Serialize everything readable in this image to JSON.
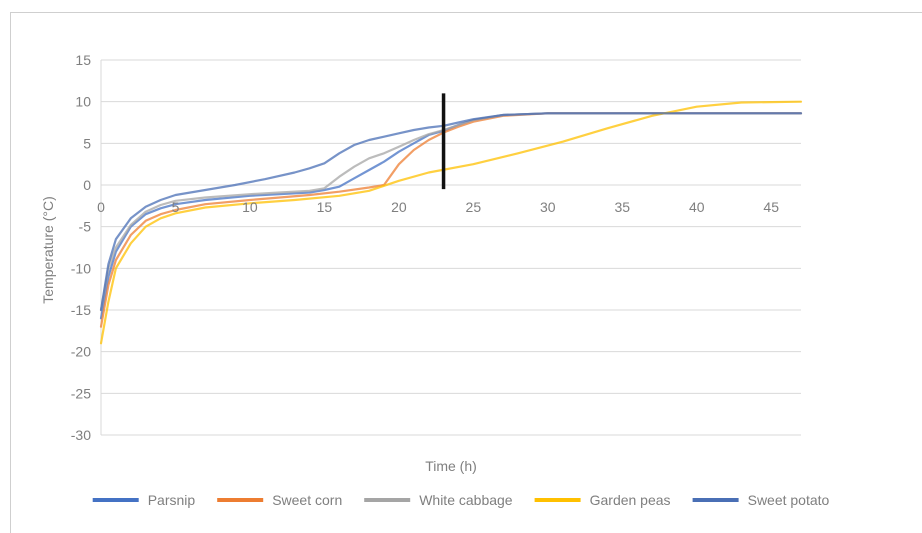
{
  "chart_data": {
    "type": "line",
    "title": "",
    "xlabel": "Time (h)",
    "ylabel": "Temperature (°C)",
    "xlim": [
      0,
      47
    ],
    "ylim": [
      -30,
      15
    ],
    "x_ticks": [
      0,
      5,
      10,
      15,
      20,
      25,
      30,
      35,
      40,
      45
    ],
    "y_ticks": [
      15,
      10,
      5,
      0,
      -5,
      -10,
      -15,
      -20,
      -25,
      -30
    ],
    "grid": "horizontal",
    "legend_position": "bottom",
    "marker_x": 23,
    "marker_y_range": [
      -0.5,
      11
    ],
    "series": [
      {
        "name": "Parsnip",
        "color": "#4472c4",
        "points": [
          [
            0,
            -16
          ],
          [
            0.5,
            -11
          ],
          [
            1,
            -8
          ],
          [
            2,
            -5
          ],
          [
            3,
            -3.5
          ],
          [
            4,
            -2.8
          ],
          [
            5,
            -2.3
          ],
          [
            7,
            -1.8
          ],
          [
            10,
            -1.3
          ],
          [
            12,
            -1.1
          ],
          [
            14,
            -0.9
          ],
          [
            15,
            -0.6
          ],
          [
            16,
            -0.2
          ],
          [
            17,
            0.8
          ],
          [
            18,
            1.8
          ],
          [
            19,
            2.8
          ],
          [
            20,
            4
          ],
          [
            21,
            5
          ],
          [
            22,
            6
          ],
          [
            23,
            6.5
          ],
          [
            24,
            7.2
          ],
          [
            25,
            7.8
          ],
          [
            27,
            8.4
          ],
          [
            30,
            8.6
          ],
          [
            35,
            8.6
          ],
          [
            40,
            8.6
          ],
          [
            47,
            8.6
          ]
        ]
      },
      {
        "name": "Sweet corn",
        "color": "#ed7d31",
        "points": [
          [
            0,
            -17
          ],
          [
            0.5,
            -12
          ],
          [
            1,
            -9
          ],
          [
            2,
            -6
          ],
          [
            3,
            -4.3
          ],
          [
            4,
            -3.5
          ],
          [
            5,
            -3
          ],
          [
            7,
            -2.3
          ],
          [
            10,
            -1.8
          ],
          [
            12,
            -1.5
          ],
          [
            14,
            -1.2
          ],
          [
            16,
            -0.8
          ],
          [
            18,
            -0.3
          ],
          [
            19,
            0
          ],
          [
            20,
            2.5
          ],
          [
            21,
            4.2
          ],
          [
            22,
            5.4
          ],
          [
            23,
            6.3
          ],
          [
            24,
            7
          ],
          [
            25,
            7.6
          ],
          [
            27,
            8.3
          ],
          [
            30,
            8.6
          ],
          [
            35,
            8.6
          ],
          [
            40,
            8.6
          ],
          [
            47,
            8.6
          ]
        ]
      },
      {
        "name": "White cabbage",
        "color": "#a5a5a5",
        "points": [
          [
            0,
            -15
          ],
          [
            0.5,
            -10
          ],
          [
            1,
            -7.5
          ],
          [
            2,
            -4.8
          ],
          [
            3,
            -3.2
          ],
          [
            4,
            -2.4
          ],
          [
            5,
            -1.9
          ],
          [
            7,
            -1.5
          ],
          [
            10,
            -1.1
          ],
          [
            12,
            -0.9
          ],
          [
            14,
            -0.7
          ],
          [
            15,
            -0.4
          ],
          [
            16,
            1
          ],
          [
            17,
            2.2
          ],
          [
            18,
            3.2
          ],
          [
            19,
            3.8
          ],
          [
            20,
            4.6
          ],
          [
            21,
            5.4
          ],
          [
            22,
            6.1
          ],
          [
            23,
            6.6
          ],
          [
            24,
            7.2
          ],
          [
            25,
            7.8
          ],
          [
            27,
            8.4
          ],
          [
            30,
            8.6
          ],
          [
            35,
            8.6
          ],
          [
            40,
            8.6
          ],
          [
            47,
            8.6
          ]
        ]
      },
      {
        "name": "Garden peas",
        "color": "#ffc000",
        "points": [
          [
            0,
            -19
          ],
          [
            0.5,
            -14
          ],
          [
            1,
            -10
          ],
          [
            2,
            -7
          ],
          [
            3,
            -5
          ],
          [
            4,
            -4
          ],
          [
            5,
            -3.4
          ],
          [
            7,
            -2.7
          ],
          [
            10,
            -2.2
          ],
          [
            13,
            -1.8
          ],
          [
            16,
            -1.3
          ],
          [
            18,
            -0.7
          ],
          [
            20,
            0.5
          ],
          [
            22,
            1.5
          ],
          [
            25,
            2.5
          ],
          [
            28,
            3.8
          ],
          [
            31,
            5.2
          ],
          [
            34,
            6.8
          ],
          [
            37,
            8.3
          ],
          [
            40,
            9.4
          ],
          [
            43,
            9.9
          ],
          [
            47,
            10
          ]
        ]
      },
      {
        "name": "Sweet potato",
        "color": "#4a6fb5",
        "points": [
          [
            0,
            -15
          ],
          [
            0.5,
            -9.5
          ],
          [
            1,
            -6.5
          ],
          [
            2,
            -4
          ],
          [
            3,
            -2.6
          ],
          [
            4,
            -1.8
          ],
          [
            5,
            -1.2
          ],
          [
            7,
            -0.6
          ],
          [
            9,
            0
          ],
          [
            11,
            0.7
          ],
          [
            13,
            1.5
          ],
          [
            14,
            2
          ],
          [
            15,
            2.6
          ],
          [
            16,
            3.8
          ],
          [
            17,
            4.8
          ],
          [
            18,
            5.4
          ],
          [
            19,
            5.8
          ],
          [
            20,
            6.2
          ],
          [
            21,
            6.6
          ],
          [
            22,
            6.9
          ],
          [
            23,
            7.1
          ],
          [
            24,
            7.5
          ],
          [
            25,
            7.9
          ],
          [
            27,
            8.4
          ],
          [
            30,
            8.6
          ],
          [
            35,
            8.6
          ],
          [
            40,
            8.6
          ],
          [
            47,
            8.6
          ]
        ]
      }
    ]
  }
}
